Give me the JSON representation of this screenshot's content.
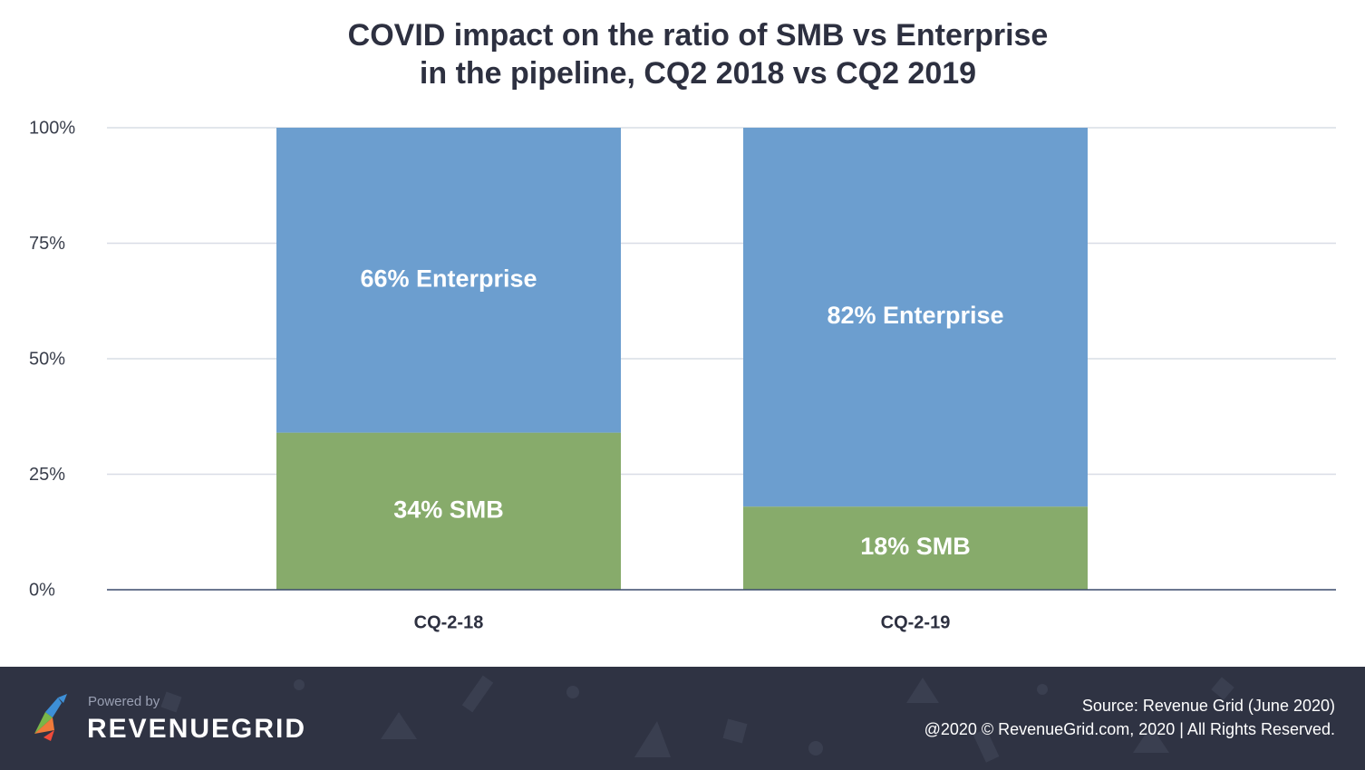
{
  "chart_data": {
    "type": "bar",
    "stacked": true,
    "title_lines": [
      "COVID impact on the ratio of SMB vs Enterprise",
      "in the pipeline, CQ2 2018 vs CQ2 2019"
    ],
    "categories": [
      "CQ-2-18",
      "CQ-2-19"
    ],
    "series": [
      {
        "name": "SMB",
        "values": [
          34,
          18
        ],
        "labels": [
          "34% SMB",
          "18% SMB"
        ],
        "color": "#87ab6b"
      },
      {
        "name": "Enterprise",
        "values": [
          66,
          82
        ],
        "labels": [
          "66% Enterprise",
          "82% Enterprise"
        ],
        "color": "#6c9ecf"
      }
    ],
    "ylim": [
      0,
      100
    ],
    "yticks": [
      0,
      25,
      50,
      75,
      100
    ],
    "ytick_labels": [
      "0%",
      "25%",
      "50%",
      "75%",
      "100%"
    ],
    "grid": true,
    "xlabel": "",
    "ylabel": ""
  },
  "colors": {
    "gridline": "#d9dde6",
    "axis": "#3a4a6b",
    "tick_text": "#3a3f4c",
    "bar_label": "#ffffff",
    "footer_bg": "#2f3343"
  },
  "footer": {
    "powered_by": "Powered by",
    "brand": "REVENUEGRID",
    "source": "Source: Revenue Grid (June 2020)",
    "copyright": "@2020 © RevenueGrid.com, 2020 | All Rights Reserved."
  }
}
